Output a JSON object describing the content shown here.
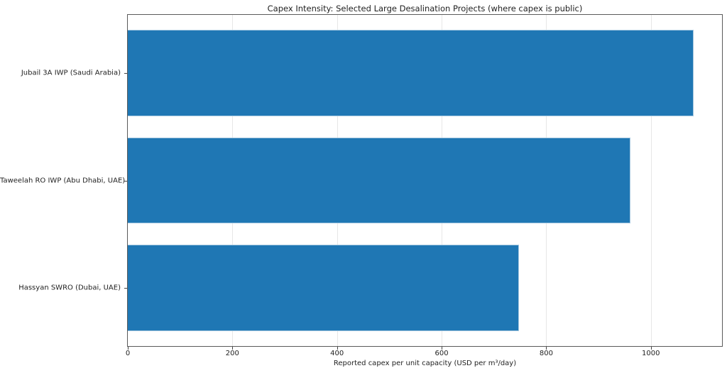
{
  "figure": {
    "background": "#ffffff"
  },
  "chart_data": {
    "type": "bar",
    "orientation": "horizontal",
    "title": "Capex Intensity: Selected Large Desalination Projects (where capex is public)",
    "xlabel": "Reported capex per unit capacity (USD per m³/day)",
    "ylabel": "",
    "categories": [
      "Jubail 3A IWP (Saudi Arabia)",
      "Taweelah RO IWP (Abu Dhabi, UAE)",
      "Hassyan SWRO (Dubai, UAE)"
    ],
    "values": [
      1082,
      961,
      748
    ],
    "x_ticks": [
      0,
      200,
      400,
      600,
      800,
      1000
    ],
    "xlim": [
      0,
      1136
    ],
    "grid": "vertical-only",
    "legend": "none",
    "colors": {
      "bar_fill": "#1f77b4",
      "bar_edge": "#a6c8e0",
      "gridline": "#e7e7e7",
      "spine": "#5a5a5a",
      "tick_mark": "#444444",
      "text": "#1f1f1f"
    }
  }
}
